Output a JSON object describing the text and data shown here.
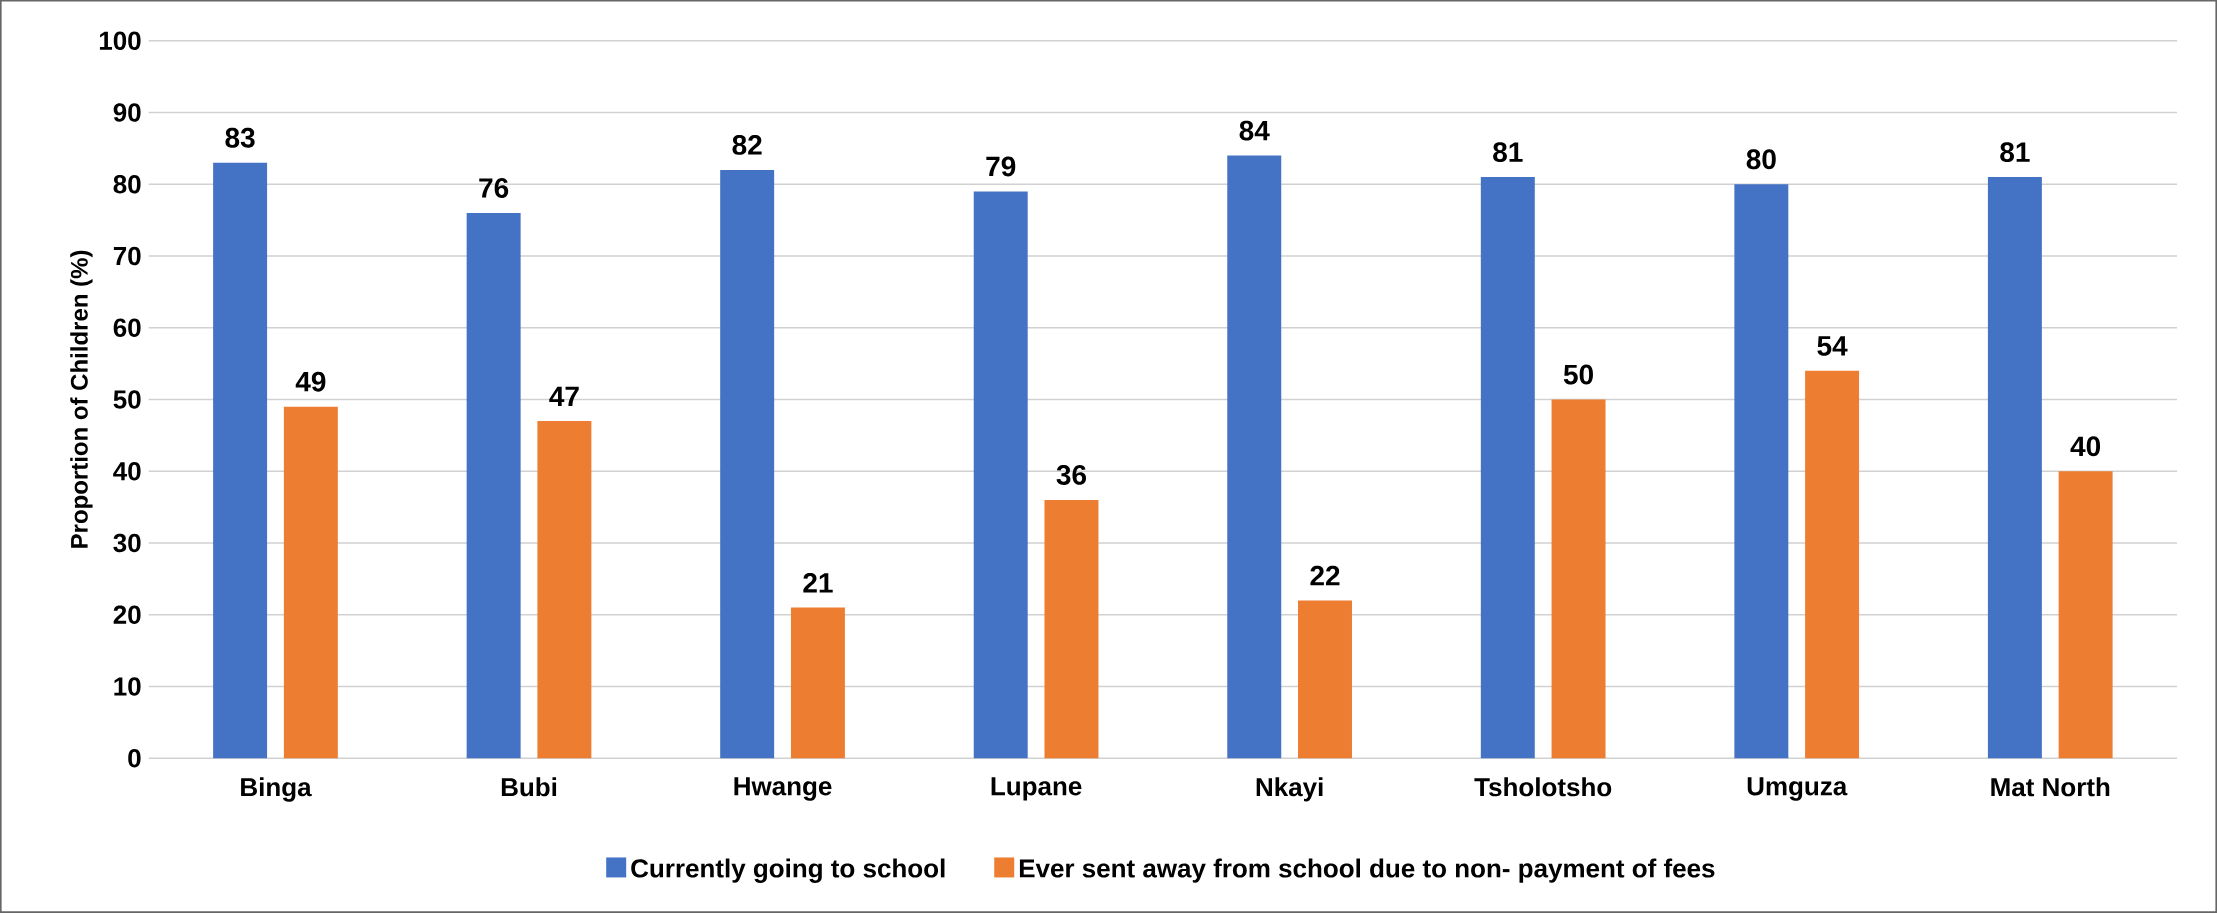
{
  "chart_data": {
    "type": "bar",
    "ylabel": "Proportion of Children (%)",
    "categories": [
      "Binga",
      "Bubi",
      "Hwange",
      "Lupane",
      "Nkayi",
      "Tsholotsho",
      "Umguza",
      "Mat North"
    ],
    "series": [
      {
        "name": "Currently going to school",
        "color": "#4472c4",
        "values": [
          83,
          76,
          82,
          79,
          84,
          81,
          80,
          81
        ]
      },
      {
        "name": "Ever sent away from school due to non- payment of fees",
        "color": "#ed7d31",
        "values": [
          49,
          47,
          21,
          36,
          22,
          50,
          54,
          40
        ]
      }
    ],
    "ylim": [
      0,
      100
    ],
    "yticks": [
      0,
      10,
      20,
      30,
      40,
      50,
      60,
      70,
      80,
      90,
      100
    ],
    "grid": "y",
    "legend": "bottom",
    "data_labels": true
  }
}
